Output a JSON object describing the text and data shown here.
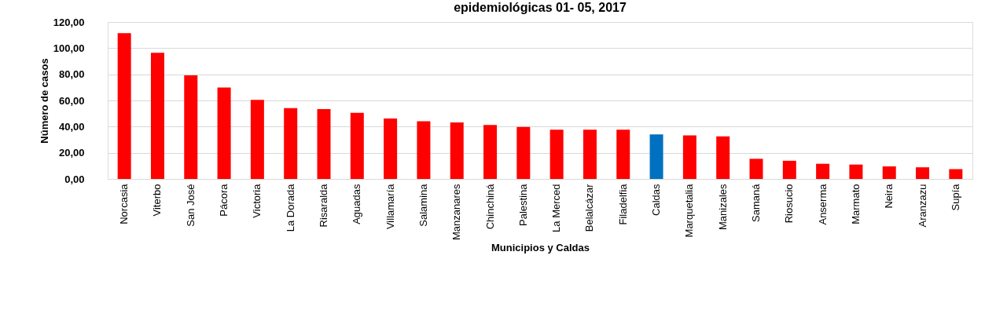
{
  "chart_data": {
    "type": "bar",
    "title": "epidemiológicas 01- 05, 2017",
    "xlabel": "Municipios  y Caldas",
    "ylabel": "Número de casos",
    "categories": [
      "Norcasia",
      "Viterbo",
      "San José",
      "Pácora",
      "Victoria",
      "La Dorada",
      "Risaralda",
      "Aguadas",
      "Villamaría",
      "Salamina",
      "Manzanares",
      "Chinchiná",
      "Palestina",
      "La Merced",
      "Belalcázar",
      "Filadelfia",
      "Caldas",
      "Marquetalia",
      "Manizales",
      "Samaná",
      "Riosucio",
      "Anserma",
      "Marmato",
      "Neira",
      "Aranzazu",
      "Supía"
    ],
    "values": [
      111.4,
      96.5,
      79.2,
      69.9,
      60.5,
      54.1,
      53.4,
      50.5,
      46.2,
      44.1,
      43.2,
      41.2,
      39.7,
      37.6,
      37.6,
      37.6,
      34.1,
      33.3,
      32.6,
      15.4,
      13.9,
      11.6,
      11.0,
      9.6,
      8.9,
      7.5
    ],
    "colors": [
      "#ff0000",
      "#ff0000",
      "#ff0000",
      "#ff0000",
      "#ff0000",
      "#ff0000",
      "#ff0000",
      "#ff0000",
      "#ff0000",
      "#ff0000",
      "#ff0000",
      "#ff0000",
      "#ff0000",
      "#ff0000",
      "#ff0000",
      "#ff0000",
      "#0070c0",
      "#ff0000",
      "#ff0000",
      "#ff0000",
      "#ff0000",
      "#ff0000",
      "#ff0000",
      "#ff0000",
      "#ff0000",
      "#ff0000"
    ],
    "ylim": [
      0,
      120
    ],
    "yticks": [
      {
        "value": 0,
        "label": "0,00"
      },
      {
        "value": 20,
        "label": "20,00"
      },
      {
        "value": 40,
        "label": "40,00"
      },
      {
        "value": 60,
        "label": "60,00"
      },
      {
        "value": 80,
        "label": "80,00"
      },
      {
        "value": 100,
        "label": "100,00"
      },
      {
        "value": 120,
        "label": "120,00"
      }
    ],
    "grid": "y"
  }
}
